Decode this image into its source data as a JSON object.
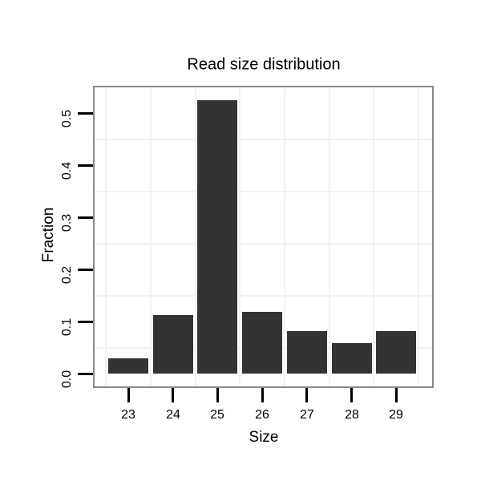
{
  "chart_data": {
    "type": "bar",
    "title": "Read size distribution",
    "xlabel": "Size",
    "ylabel": "Fraction",
    "categories": [
      "23",
      "24",
      "25",
      "26",
      "27",
      "28",
      "29"
    ],
    "values": [
      0.029,
      0.113,
      0.525,
      0.119,
      0.082,
      0.058,
      0.081
    ],
    "y_ticks": [
      0.0,
      0.1,
      0.2,
      0.3,
      0.4,
      0.5
    ],
    "ylim": [
      0,
      0.54
    ],
    "legend": "none",
    "grid": "faint minor gridlines between ticks, horizontal and vertical",
    "colors": {
      "bar_fill": "#333333",
      "panel_border": "#888888",
      "gridline": "#f2f2f2",
      "tick": "#000000",
      "text": "#000000",
      "background": "#ffffff"
    }
  }
}
